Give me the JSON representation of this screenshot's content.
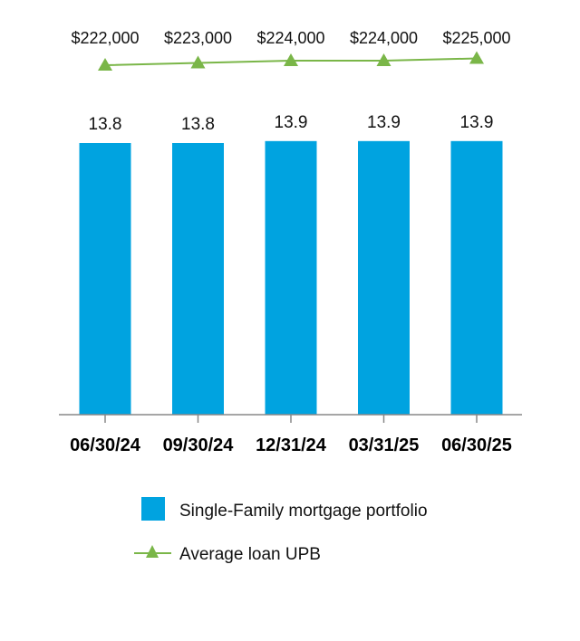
{
  "chart_data": {
    "type": "bar",
    "categories": [
      "06/30/24",
      "09/30/24",
      "12/31/24",
      "03/31/25",
      "06/30/25"
    ],
    "series": [
      {
        "name": "Single-Family mortgage portfolio",
        "type": "bar",
        "values": [
          13.8,
          13.8,
          13.9,
          13.9,
          13.9
        ],
        "labels": [
          "13.8",
          "13.8",
          "13.9",
          "13.9",
          "13.9"
        ],
        "color": "#00A3E0"
      },
      {
        "name": "Average loan UPB",
        "type": "line",
        "marker": "triangle",
        "values": [
          222000,
          223000,
          224000,
          224000,
          225000
        ],
        "labels": [
          "$222,000",
          "$223,000",
          "$224,000",
          "$224,000",
          "$225,000"
        ],
        "color": "#7AB648"
      }
    ],
    "title": "",
    "xlabel": "",
    "ylabel": "",
    "grid": false,
    "legend_position": "bottom"
  },
  "legend": {
    "bar_label": "Single-Family mortgage portfolio",
    "line_label": "Average loan UPB"
  }
}
